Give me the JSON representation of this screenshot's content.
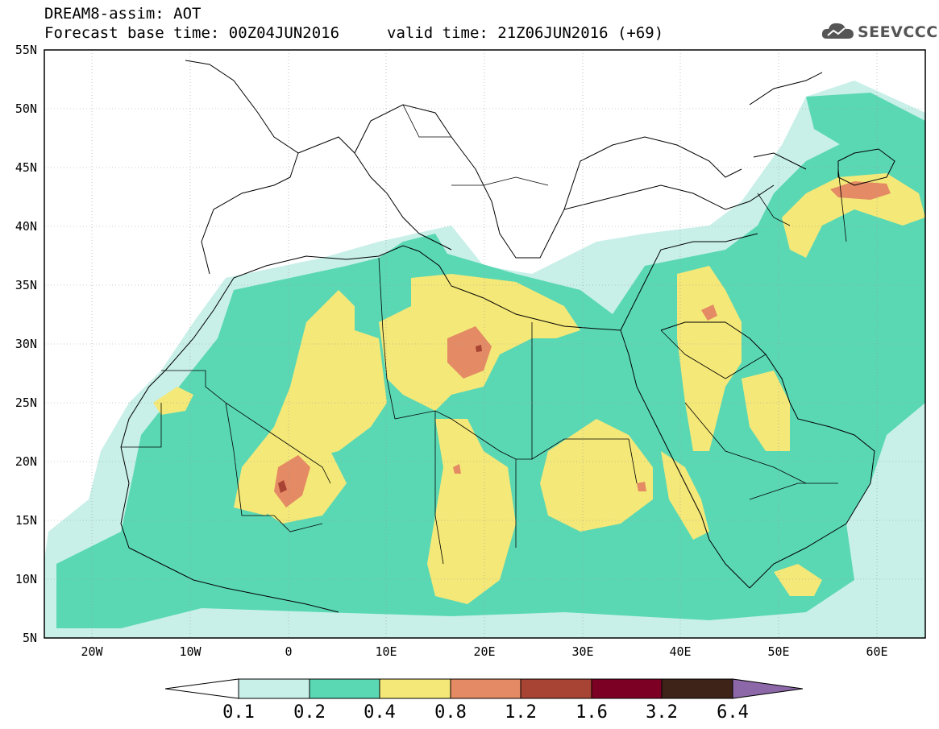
{
  "header": {
    "title": "DREAM8-assim: AOT",
    "base_time": "Forecast base time: 00Z04JUN2016",
    "valid_time": "valid time: 21Z06JUN2016 (+69)",
    "logo_text": "SEEVCCC"
  },
  "map": {
    "lon_range": [
      -25,
      65
    ],
    "lat_range": [
      5,
      55
    ],
    "lat_labels": [
      "55N",
      "50N",
      "45N",
      "40N",
      "35N",
      "30N",
      "25N",
      "20N",
      "15N",
      "10N",
      "5N"
    ],
    "lon_labels": [
      "20W",
      "10W",
      "0",
      "10E",
      "20E",
      "30E",
      "40E",
      "50E",
      "60E"
    ]
  },
  "colorbar": {
    "colors": [
      "#c8f0e8",
      "#5ad8b4",
      "#f4e878",
      "#e48a64",
      "#a84434",
      "#7c0024",
      "#3e2418"
    ],
    "arrow_left": "#ffffff",
    "arrow_right": "#8c68a8",
    "labels": [
      "0.1",
      "0.2",
      "0.4",
      "0.8",
      "1.2",
      "1.6",
      "3.2",
      "6.4"
    ]
  }
}
